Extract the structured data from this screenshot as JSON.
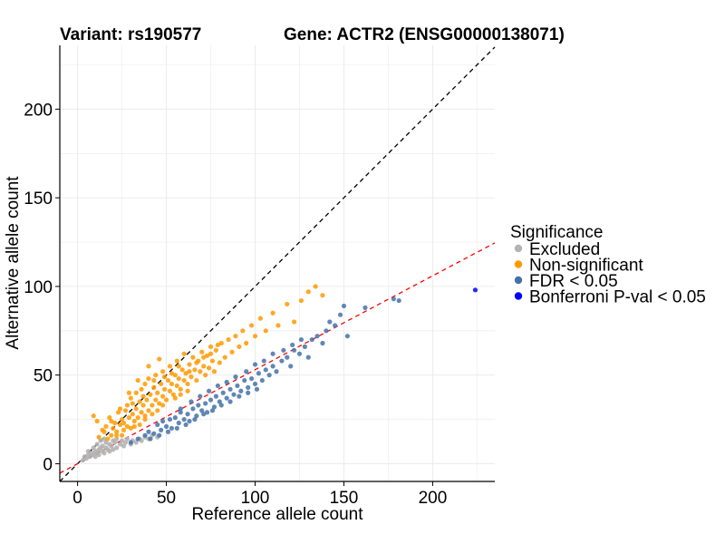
{
  "chart_data": {
    "type": "scatter",
    "title_left": "Variant: rs190577",
    "title_right": "Gene: ACTR2 (ENSG00000138071)",
    "xlabel": "Reference allele count",
    "ylabel": "Alternative allele count",
    "xlim": [
      -10,
      235
    ],
    "ylim": [
      -10,
      236
    ],
    "xticks": [
      0,
      50,
      100,
      150,
      200
    ],
    "yticks": [
      0,
      50,
      100,
      150,
      200
    ],
    "grid": true,
    "reference_lines": [
      {
        "name": "identity",
        "slope": 1.0,
        "intercept": 0,
        "color": "#000000",
        "style": "dashed"
      },
      {
        "name": "fit",
        "slope": 0.53,
        "intercept": 0,
        "color": "#ff0000",
        "style": "dashed"
      }
    ],
    "legend": {
      "title": "Significance",
      "position": "right",
      "entries": [
        {
          "label": "Excluded",
          "color": "#b3b3b3"
        },
        {
          "label": "Non-significant",
          "color": "#ff9900"
        },
        {
          "label": "FDR < 0.05",
          "color": "#4472a8"
        },
        {
          "label": "Bonferroni P-val < 0.05",
          "color": "#0000ff"
        }
      ]
    },
    "series": [
      {
        "name": "Excluded",
        "color": "#b3b3b3",
        "points": [
          [
            3,
            2
          ],
          [
            5,
            3
          ],
          [
            6,
            5
          ],
          [
            7,
            4
          ],
          [
            8,
            6
          ],
          [
            9,
            5
          ],
          [
            10,
            7
          ],
          [
            10,
            4
          ],
          [
            11,
            6
          ],
          [
            12,
            8
          ],
          [
            12,
            5
          ],
          [
            13,
            9
          ],
          [
            14,
            7
          ],
          [
            14,
            10
          ],
          [
            15,
            6
          ],
          [
            16,
            9
          ],
          [
            16,
            12
          ],
          [
            17,
            8
          ],
          [
            18,
            11
          ],
          [
            18,
            7
          ],
          [
            19,
            10
          ],
          [
            20,
            13
          ],
          [
            20,
            8
          ],
          [
            21,
            12
          ],
          [
            22,
            9
          ],
          [
            22,
            14
          ],
          [
            24,
            11
          ],
          [
            25,
            13
          ],
          [
            26,
            10
          ],
          [
            27,
            12
          ],
          [
            28,
            14
          ],
          [
            30,
            11
          ],
          [
            31,
            13
          ],
          [
            33,
            12
          ],
          [
            35,
            14
          ],
          [
            36,
            13
          ],
          [
            38,
            15
          ],
          [
            40,
            14
          ],
          [
            42,
            16
          ],
          [
            45,
            15
          ],
          [
            4,
            4
          ],
          [
            6,
            7
          ],
          [
            9,
            9
          ],
          [
            11,
            11
          ],
          [
            13,
            13
          ],
          [
            15,
            14
          ]
        ]
      },
      {
        "name": "Non-significant",
        "color": "#ff9900",
        "points": [
          [
            9,
            27
          ],
          [
            11,
            24
          ],
          [
            14,
            19
          ],
          [
            16,
            21
          ],
          [
            18,
            26
          ],
          [
            19,
            16
          ],
          [
            20,
            20
          ],
          [
            21,
            23
          ],
          [
            22,
            18
          ],
          [
            23,
            29
          ],
          [
            24,
            22
          ],
          [
            25,
            25
          ],
          [
            26,
            19
          ],
          [
            27,
            30
          ],
          [
            28,
            21
          ],
          [
            28,
            33
          ],
          [
            29,
            26
          ],
          [
            30,
            20
          ],
          [
            30,
            37
          ],
          [
            31,
            28
          ],
          [
            32,
            24
          ],
          [
            33,
            31
          ],
          [
            33,
            40
          ],
          [
            34,
            26
          ],
          [
            35,
            35
          ],
          [
            36,
            29
          ],
          [
            36,
            42
          ],
          [
            37,
            33
          ],
          [
            38,
            27
          ],
          [
            38,
            45
          ],
          [
            39,
            36
          ],
          [
            40,
            30
          ],
          [
            40,
            48
          ],
          [
            41,
            39
          ],
          [
            42,
            33
          ],
          [
            43,
            43
          ],
          [
            44,
            36
          ],
          [
            44,
            50
          ],
          [
            45,
            40
          ],
          [
            46,
            34
          ],
          [
            47,
            45
          ],
          [
            48,
            38
          ],
          [
            48,
            52
          ],
          [
            49,
            42
          ],
          [
            50,
            36
          ],
          [
            51,
            47
          ],
          [
            52,
            41
          ],
          [
            52,
            55
          ],
          [
            53,
            45
          ],
          [
            54,
            39
          ],
          [
            55,
            50
          ],
          [
            56,
            44
          ],
          [
            56,
            58
          ],
          [
            57,
            48
          ],
          [
            58,
            42
          ],
          [
            59,
            53
          ],
          [
            60,
            47
          ],
          [
            60,
            62
          ],
          [
            61,
            51
          ],
          [
            62,
            45
          ],
          [
            63,
            56
          ],
          [
            64,
            49
          ],
          [
            65,
            60
          ],
          [
            66,
            53
          ],
          [
            67,
            47
          ],
          [
            68,
            58
          ],
          [
            69,
            52
          ],
          [
            70,
            63
          ],
          [
            71,
            55
          ],
          [
            72,
            50
          ],
          [
            73,
            61
          ],
          [
            74,
            54
          ],
          [
            75,
            66
          ],
          [
            76,
            58
          ],
          [
            77,
            52
          ],
          [
            78,
            64
          ],
          [
            80,
            57
          ],
          [
            81,
            68
          ],
          [
            83,
            60
          ],
          [
            85,
            70
          ],
          [
            87,
            63
          ],
          [
            89,
            72
          ],
          [
            91,
            66
          ],
          [
            93,
            75
          ],
          [
            95,
            68
          ],
          [
            98,
            78
          ],
          [
            100,
            72
          ],
          [
            103,
            82
          ],
          [
            106,
            75
          ],
          [
            110,
            85
          ],
          [
            113,
            78
          ],
          [
            118,
            90
          ],
          [
            122,
            80
          ],
          [
            126,
            92
          ],
          [
            130,
            97
          ],
          [
            134,
            100
          ],
          [
            138,
            95
          ],
          [
            35,
            22
          ],
          [
            42,
            28
          ],
          [
            48,
            33
          ],
          [
            55,
            37
          ],
          [
            62,
            41
          ],
          [
            25,
            16
          ],
          [
            32,
            21
          ],
          [
            38,
            25
          ],
          [
            45,
            30
          ],
          [
            58,
            39
          ],
          [
            34,
            47
          ],
          [
            40,
            55
          ],
          [
            46,
            59
          ],
          [
            29,
            40
          ],
          [
            24,
            31
          ],
          [
            19,
            24
          ],
          [
            15,
            18
          ],
          [
            12,
            15
          ],
          [
            17,
            14
          ],
          [
            22,
            16
          ],
          [
            26,
            23
          ],
          [
            31,
            34
          ],
          [
            37,
            38
          ],
          [
            43,
            47
          ],
          [
            49,
            49
          ],
          [
            53,
            51
          ],
          [
            57,
            55
          ],
          [
            63,
            52
          ],
          [
            67,
            57
          ],
          [
            71,
            60
          ],
          [
            75,
            62
          ],
          [
            79,
            67
          ]
        ]
      },
      {
        "name": "FDR < 0.05",
        "color": "#4472a8",
        "points": [
          [
            30,
            12
          ],
          [
            34,
            14
          ],
          [
            38,
            16
          ],
          [
            40,
            18
          ],
          [
            43,
            17
          ],
          [
            45,
            22
          ],
          [
            47,
            19
          ],
          [
            48,
            24
          ],
          [
            50,
            21
          ],
          [
            52,
            25
          ],
          [
            53,
            20
          ],
          [
            55,
            26
          ],
          [
            57,
            23
          ],
          [
            58,
            29
          ],
          [
            60,
            25
          ],
          [
            62,
            28
          ],
          [
            63,
            24
          ],
          [
            65,
            31
          ],
          [
            67,
            27
          ],
          [
            68,
            33
          ],
          [
            70,
            30
          ],
          [
            72,
            34
          ],
          [
            73,
            29
          ],
          [
            75,
            36
          ],
          [
            77,
            32
          ],
          [
            78,
            38
          ],
          [
            80,
            35
          ],
          [
            82,
            40
          ],
          [
            84,
            37
          ],
          [
            86,
            42
          ],
          [
            88,
            39
          ],
          [
            90,
            44
          ],
          [
            92,
            41
          ],
          [
            94,
            47
          ],
          [
            96,
            43
          ],
          [
            98,
            48
          ],
          [
            100,
            45
          ],
          [
            102,
            51
          ],
          [
            104,
            47
          ],
          [
            106,
            53
          ],
          [
            108,
            50
          ],
          [
            110,
            55
          ],
          [
            112,
            52
          ],
          [
            115,
            58
          ],
          [
            118,
            60
          ],
          [
            120,
            55
          ],
          [
            122,
            64
          ],
          [
            125,
            62
          ],
          [
            128,
            66
          ],
          [
            130,
            60
          ],
          [
            132,
            70
          ],
          [
            135,
            72
          ],
          [
            138,
            68
          ],
          [
            140,
            75
          ],
          [
            142,
            80
          ],
          [
            145,
            78
          ],
          [
            148,
            84
          ],
          [
            150,
            89
          ],
          [
            152,
            72
          ],
          [
            162,
            88
          ],
          [
            178,
            93
          ],
          [
            181,
            92
          ],
          [
            41,
            14
          ],
          [
            46,
            16
          ],
          [
            51,
            18
          ],
          [
            56,
            20
          ],
          [
            61,
            22
          ],
          [
            66,
            25
          ],
          [
            71,
            28
          ],
          [
            76,
            30
          ],
          [
            81,
            33
          ],
          [
            86,
            35
          ],
          [
            91,
            38
          ],
          [
            96,
            40
          ],
          [
            101,
            42
          ],
          [
            58,
            31
          ],
          [
            64,
            35
          ],
          [
            69,
            38
          ],
          [
            74,
            41
          ],
          [
            79,
            44
          ],
          [
            84,
            46
          ],
          [
            89,
            49
          ],
          [
            95,
            52
          ],
          [
            100,
            56
          ],
          [
            105,
            58
          ],
          [
            110,
            62
          ],
          [
            116,
            64
          ],
          [
            121,
            67
          ],
          [
            126,
            70
          ]
        ]
      },
      {
        "name": "Bonferroni P-val < 0.05",
        "color": "#0000ff",
        "points": [
          [
            224,
            98
          ]
        ]
      }
    ]
  }
}
